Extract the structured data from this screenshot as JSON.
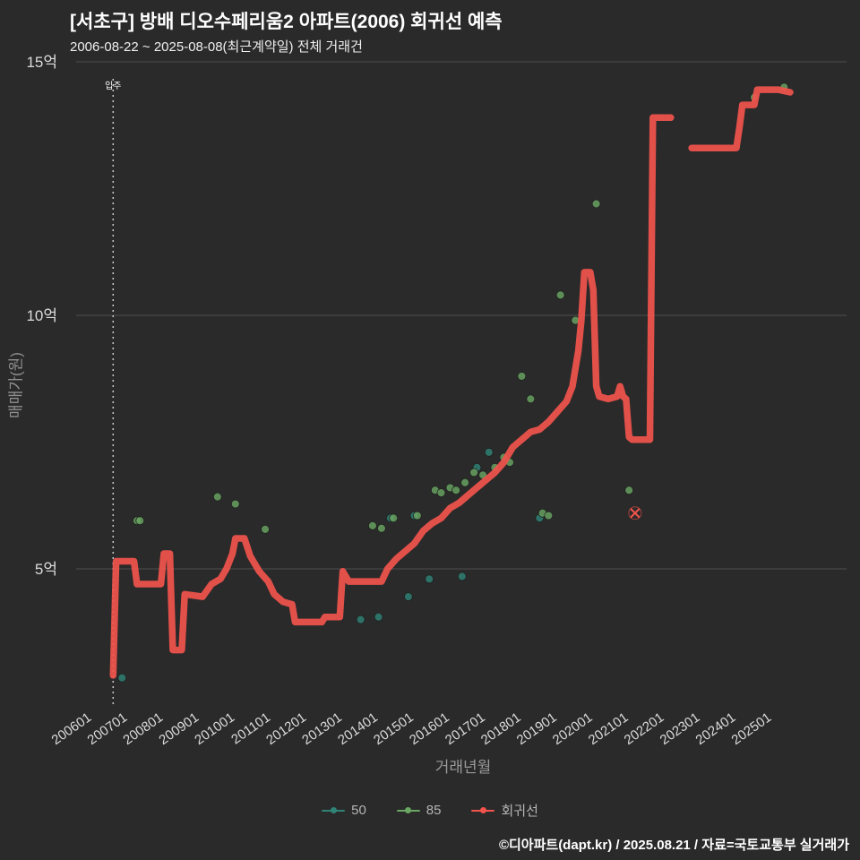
{
  "header": {
    "title": "[서초구] 방배 디오수페리움2 아파트(2006) 회귀선 예측",
    "subtitle": "2006-08-22 ~ 2025-08-08(최근계약일) 전체 거래건"
  },
  "footer": {
    "credit": "©디아파트(dapt.kr) / 2025.08.21 / 자료=국토교통부 실거래가"
  },
  "colors": {
    "background": "#2a2a2a",
    "grid": "#4f4f4f",
    "red": "#f2544d",
    "teal": "#2f8377",
    "green": "#6aa763",
    "tick_text": "#dcdcdc",
    "axis_title": "#8f8f8f",
    "annotation_line": "#cccccc"
  },
  "legend": {
    "items": [
      {
        "label": "50",
        "color_key": "teal"
      },
      {
        "label": "85",
        "color_key": "green"
      },
      {
        "label": "회귀선",
        "color_key": "red"
      }
    ]
  },
  "annotation": {
    "label": "입주",
    "x": "2006-08"
  },
  "chart_data": {
    "type": "line+scatter",
    "title": "[서초구] 방배 디오수페리움2 아파트(2006) 회귀선 예측",
    "xlabel": "거래년월",
    "ylabel": "매매가(원)",
    "unit": "억원",
    "ylim": [
      2.3,
      15.3
    ],
    "grid": "horizontal-only",
    "legend_position": "bottom-center",
    "y_ticks": [
      {
        "label": "5억",
        "value": 5
      },
      {
        "label": "10억",
        "value": 10
      },
      {
        "label": "15억",
        "value": 15
      }
    ],
    "x_ticks": [
      "200601",
      "200701",
      "200801",
      "200901",
      "201001",
      "201101",
      "201201",
      "201301",
      "201401",
      "201501",
      "201601",
      "201701",
      "201801",
      "201901",
      "202001",
      "202101",
      "202201",
      "202301",
      "202401",
      "202501"
    ],
    "series": {
      "regression": {
        "name": "회귀선",
        "type": "line",
        "segments": [
          [
            [
              "2006-08",
              2.9
            ],
            [
              "2006-09",
              5.15
            ],
            [
              "2007-03",
              5.15
            ],
            [
              "2007-04",
              4.7
            ],
            [
              "2007-12",
              4.7
            ],
            [
              "2008-01",
              5.3
            ],
            [
              "2008-03",
              5.3
            ],
            [
              "2008-04",
              3.4
            ],
            [
              "2008-07",
              3.4
            ],
            [
              "2008-08",
              4.5
            ],
            [
              "2009-02",
              4.45
            ],
            [
              "2009-05",
              4.7
            ],
            [
              "2009-08",
              4.8
            ],
            [
              "2009-10",
              5.0
            ],
            [
              "2009-12",
              5.3
            ],
            [
              "2010-01",
              5.6
            ],
            [
              "2010-04",
              5.6
            ],
            [
              "2010-06",
              5.25
            ],
            [
              "2010-09",
              4.95
            ],
            [
              "2010-12",
              4.75
            ],
            [
              "2011-02",
              4.5
            ],
            [
              "2011-05",
              4.35
            ],
            [
              "2011-08",
              4.3
            ],
            [
              "2011-09",
              3.95
            ],
            [
              "2012-06",
              3.95
            ],
            [
              "2012-07",
              4.05
            ],
            [
              "2012-12",
              4.05
            ],
            [
              "2013-01",
              4.95
            ],
            [
              "2013-03",
              4.75
            ],
            [
              "2014-02",
              4.75
            ],
            [
              "2014-04",
              5.0
            ],
            [
              "2014-07",
              5.2
            ],
            [
              "2014-10",
              5.35
            ],
            [
              "2015-01",
              5.5
            ],
            [
              "2015-04",
              5.75
            ],
            [
              "2015-07",
              5.9
            ],
            [
              "2015-10",
              6.0
            ],
            [
              "2016-01",
              6.2
            ],
            [
              "2016-04",
              6.3
            ],
            [
              "2016-07",
              6.45
            ],
            [
              "2016-10",
              6.6
            ],
            [
              "2017-01",
              6.75
            ],
            [
              "2017-04",
              6.9
            ],
            [
              "2017-07",
              7.1
            ],
            [
              "2017-10",
              7.4
            ],
            [
              "2018-01",
              7.55
            ],
            [
              "2018-04",
              7.7
            ],
            [
              "2018-07",
              7.75
            ],
            [
              "2018-10",
              7.9
            ],
            [
              "2019-01",
              8.1
            ],
            [
              "2019-04",
              8.3
            ],
            [
              "2019-06",
              8.6
            ],
            [
              "2019-08",
              9.3
            ],
            [
              "2019-09",
              9.9
            ],
            [
              "2019-10",
              10.85
            ],
            [
              "2019-12",
              10.85
            ],
            [
              "2020-01",
              10.5
            ],
            [
              "2020-02",
              8.6
            ],
            [
              "2020-03",
              8.4
            ],
            [
              "2020-06",
              8.35
            ],
            [
              "2020-09",
              8.4
            ],
            [
              "2020-10",
              8.6
            ],
            [
              "2020-11",
              8.4
            ],
            [
              "2020-12",
              8.35
            ],
            [
              "2021-01",
              7.6
            ],
            [
              "2021-02",
              7.55
            ],
            [
              "2021-08",
              7.55
            ],
            [
              "2021-09",
              13.9
            ],
            [
              "2022-03",
              13.9
            ]
          ],
          [
            [
              "2022-10",
              13.3
            ],
            [
              "2024-01",
              13.3
            ],
            [
              "2024-02",
              13.7
            ],
            [
              "2024-03",
              14.15
            ],
            [
              "2024-07",
              14.15
            ],
            [
              "2024-08",
              14.45
            ],
            [
              "2025-03",
              14.45
            ],
            [
              "2025-07",
              14.4
            ]
          ]
        ]
      },
      "scatter_50": {
        "name": "50",
        "type": "scatter",
        "points": [
          [
            "2006-11",
            2.85
          ],
          [
            "2013-07",
            4.0
          ],
          [
            "2014-01",
            4.05
          ],
          [
            "2014-05",
            6.0
          ],
          [
            "2014-11",
            4.45
          ],
          [
            "2015-01",
            6.05
          ],
          [
            "2015-06",
            4.8
          ],
          [
            "2016-05",
            4.85
          ],
          [
            "2016-10",
            7.0
          ],
          [
            "2017-02",
            7.3
          ],
          [
            "2018-07",
            6.0
          ]
        ]
      },
      "scatter_85": {
        "name": "85",
        "type": "scatter",
        "points": [
          [
            "2007-04",
            5.95
          ],
          [
            "2007-05",
            5.95
          ],
          [
            "2009-07",
            6.42
          ],
          [
            "2010-01",
            6.28
          ],
          [
            "2010-11",
            5.78
          ],
          [
            "2013-11",
            5.85
          ],
          [
            "2014-02",
            5.8
          ],
          [
            "2014-06",
            6.0
          ],
          [
            "2015-02",
            6.05
          ],
          [
            "2015-08",
            6.55
          ],
          [
            "2015-10",
            6.5
          ],
          [
            "2016-01",
            6.6
          ],
          [
            "2016-03",
            6.55
          ],
          [
            "2016-06",
            6.7
          ],
          [
            "2016-09",
            6.9
          ],
          [
            "2016-12",
            6.85
          ],
          [
            "2017-04",
            7.0
          ],
          [
            "2017-07",
            7.2
          ],
          [
            "2017-09",
            7.1
          ],
          [
            "2018-01",
            8.8
          ],
          [
            "2018-04",
            8.35
          ],
          [
            "2018-08",
            6.1
          ],
          [
            "2018-10",
            6.05
          ],
          [
            "2019-02",
            10.4
          ],
          [
            "2019-07",
            9.9
          ],
          [
            "2020-02",
            12.2
          ],
          [
            "2021-01",
            6.55
          ],
          [
            "2024-07",
            14.3
          ],
          [
            "2025-05",
            14.5
          ]
        ]
      },
      "excluded": {
        "name": "제외표시",
        "type": "x-marker",
        "point": [
          "2021-03",
          6.1
        ]
      }
    }
  }
}
